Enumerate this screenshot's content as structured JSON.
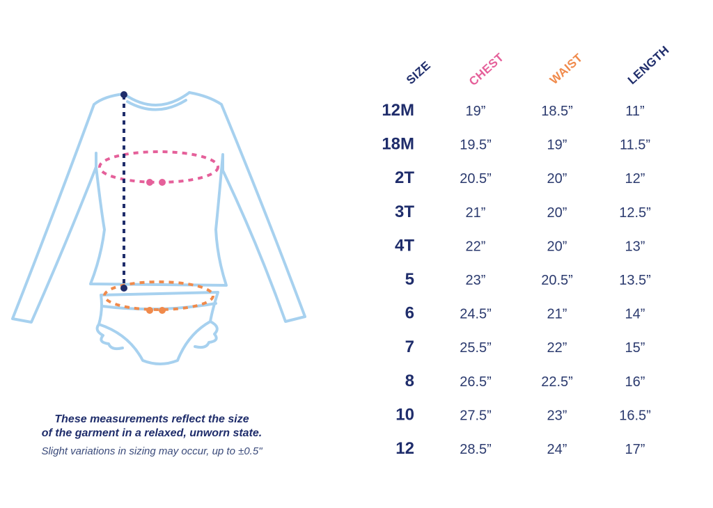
{
  "header": {
    "size": "SIZE",
    "chest": "CHEST",
    "waist": "WAIST",
    "length": "LENGTH"
  },
  "table": {
    "rows": [
      [
        "12M",
        "19”",
        "18.5”",
        "11”"
      ],
      [
        "18M",
        "19.5”",
        "19”",
        "11.5”"
      ],
      [
        "2T",
        "20.5”",
        "20”",
        "12”"
      ],
      [
        "3T",
        "21”",
        "20”",
        "12.5”"
      ],
      [
        "4T",
        "22”",
        "20”",
        "13”"
      ],
      [
        "5",
        "23”",
        "20.5”",
        "13.5”"
      ],
      [
        "6",
        "24.5”",
        "21”",
        "14”"
      ],
      [
        "7",
        "25.5”",
        "22”",
        "15”"
      ],
      [
        "8",
        "26.5”",
        "22.5”",
        "16”"
      ],
      [
        "10",
        "27.5”",
        "23”",
        "16.5”"
      ],
      [
        "12",
        "28.5”",
        "24”",
        "17”"
      ]
    ]
  },
  "note": {
    "line1": "These measurements reflect the size",
    "line2": "of the garment in a relaxed, unworn state.",
    "line3": "Slight variations in sizing may occur, up to ±0.5\""
  }
}
